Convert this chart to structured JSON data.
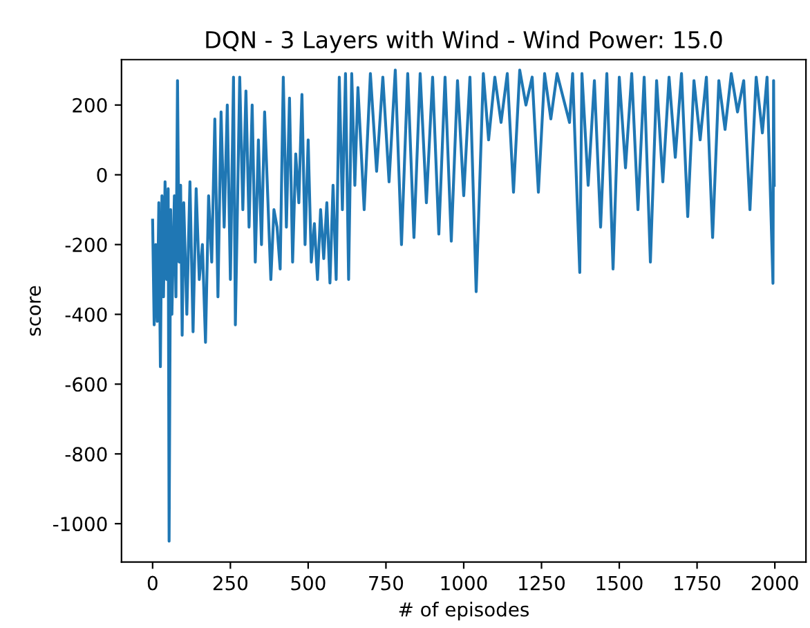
{
  "chart_data": {
    "type": "line",
    "title": "DQN - 3 Layers with Wind - Wind Power: 15.0",
    "xlabel": "# of episodes",
    "ylabel": "score",
    "xlim": [
      -100,
      2100
    ],
    "ylim": [
      -1110,
      330
    ],
    "xticks": [
      0,
      250,
      500,
      750,
      1000,
      1250,
      1500,
      1750,
      2000
    ],
    "yticks": [
      -1000,
      -800,
      -600,
      -400,
      -200,
      0,
      200
    ],
    "grid": false,
    "legend": false,
    "series": [
      {
        "color": "#1f77b4",
        "x": [
          0,
          5,
          10,
          15,
          20,
          25,
          30,
          35,
          40,
          45,
          50,
          53,
          58,
          62,
          70,
          75,
          80,
          85,
          90,
          95,
          100,
          110,
          120,
          130,
          140,
          150,
          160,
          170,
          180,
          190,
          200,
          210,
          220,
          230,
          240,
          250,
          260,
          266,
          280,
          290,
          300,
          310,
          320,
          330,
          340,
          350,
          360,
          380,
          390,
          400,
          410,
          420,
          430,
          440,
          450,
          460,
          470,
          480,
          490,
          500,
          510,
          520,
          530,
          540,
          550,
          560,
          570,
          580,
          590,
          600,
          610,
          620,
          630,
          640,
          650,
          660,
          680,
          700,
          720,
          740,
          760,
          780,
          800,
          820,
          840,
          860,
          880,
          900,
          920,
          940,
          960,
          980,
          1000,
          1020,
          1040,
          1063,
          1080,
          1100,
          1120,
          1140,
          1160,
          1180,
          1200,
          1220,
          1240,
          1260,
          1280,
          1300,
          1340,
          1350,
          1373,
          1380,
          1400,
          1420,
          1440,
          1460,
          1480,
          1500,
          1520,
          1540,
          1560,
          1580,
          1600,
          1620,
          1640,
          1660,
          1680,
          1700,
          1720,
          1740,
          1760,
          1780,
          1800,
          1820,
          1840,
          1860,
          1880,
          1900,
          1920,
          1940,
          1960,
          1975,
          1994,
          1996,
          1998
        ],
        "values": [
          -130,
          -430,
          -200,
          -420,
          -80,
          -550,
          -60,
          -350,
          -20,
          -300,
          -40,
          -1050,
          -100,
          -400,
          -60,
          -350,
          270,
          -250,
          -30,
          -460,
          -80,
          -400,
          -20,
          -450,
          -40,
          -300,
          -200,
          -480,
          -60,
          -250,
          160,
          -350,
          180,
          -150,
          200,
          -300,
          280,
          -430,
          280,
          -100,
          240,
          -150,
          200,
          -250,
          100,
          -200,
          180,
          -300,
          -100,
          -150,
          -270,
          280,
          -150,
          220,
          -250,
          60,
          -80,
          230,
          -200,
          100,
          -250,
          -140,
          -300,
          -100,
          -240,
          -80,
          -310,
          -30,
          -300,
          280,
          -100,
          290,
          -300,
          290,
          -30,
          250,
          -100,
          290,
          10,
          280,
          -20,
          300,
          -200,
          290,
          -180,
          290,
          -80,
          280,
          -170,
          280,
          -190,
          270,
          -60,
          280,
          -335,
          290,
          100,
          280,
          150,
          290,
          -50,
          300,
          200,
          280,
          -50,
          290,
          160,
          290,
          150,
          290,
          -280,
          290,
          -30,
          270,
          -150,
          290,
          -270,
          280,
          20,
          290,
          -100,
          280,
          -250,
          270,
          -20,
          280,
          50,
          290,
          -120,
          270,
          100,
          280,
          -180,
          270,
          130,
          290,
          180,
          270,
          -100,
          280,
          120,
          280,
          -311,
          270,
          -30
        ]
      }
    ]
  }
}
